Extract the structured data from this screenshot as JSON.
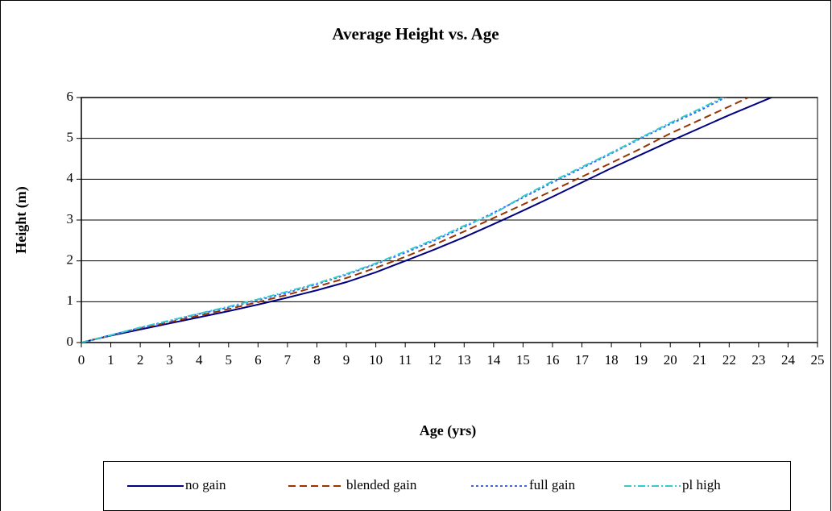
{
  "chart_data": {
    "type": "line",
    "title": "Average Height vs. Age",
    "x_label": "Age (yrs)",
    "y_label": "Height (m)",
    "x": [
      0,
      1,
      2,
      3,
      4,
      5,
      6,
      7,
      8,
      9,
      10,
      11,
      12,
      13,
      14,
      15,
      16,
      17,
      18,
      19,
      20,
      21,
      22,
      23,
      24
    ],
    "series": [
      {
        "name": "no gain",
        "color": "#000080",
        "values": [
          0,
          0.17,
          0.32,
          0.47,
          0.62,
          0.77,
          0.93,
          1.1,
          1.28,
          1.48,
          1.72,
          2.0,
          2.28,
          2.58,
          2.9,
          3.23,
          3.57,
          3.92,
          4.27,
          4.6,
          4.93,
          5.25,
          5.57,
          5.87,
          6.17
        ]
      },
      {
        "name": "blended gain",
        "color": "#993300",
        "values": [
          0,
          0.18,
          0.35,
          0.5,
          0.66,
          0.82,
          0.99,
          1.17,
          1.37,
          1.58,
          1.83,
          2.1,
          2.4,
          2.72,
          3.05,
          3.38,
          3.72,
          4.06,
          4.4,
          4.75,
          5.12,
          5.45,
          5.78,
          6.12,
          null
        ]
      },
      {
        "name": "full gain",
        "color": "#3366ff",
        "values": [
          0,
          0.18,
          0.36,
          0.53,
          0.7,
          0.86,
          1.04,
          1.22,
          1.43,
          1.66,
          1.92,
          2.2,
          2.5,
          2.83,
          3.18,
          3.55,
          3.92,
          4.27,
          4.63,
          5.0,
          5.35,
          5.68,
          6.05,
          null,
          null
        ]
      },
      {
        "name": "pl high",
        "color": "#33cccc",
        "values": [
          0,
          0.18,
          0.37,
          0.54,
          0.71,
          0.88,
          1.06,
          1.25,
          1.45,
          1.68,
          1.94,
          2.23,
          2.53,
          2.86,
          3.15,
          3.58,
          3.95,
          4.3,
          4.65,
          5.02,
          5.38,
          5.72,
          6.08,
          null,
          null
        ]
      }
    ],
    "xlim": [
      0,
      25
    ],
    "xticks": [
      0,
      1,
      2,
      3,
      4,
      5,
      6,
      7,
      8,
      9,
      10,
      11,
      12,
      13,
      14,
      15,
      16,
      17,
      18,
      19,
      20,
      21,
      22,
      23,
      24,
      25
    ],
    "ylim": [
      0,
      6
    ],
    "yticks": [
      0,
      1,
      2,
      3,
      4,
      5,
      6
    ],
    "grid": true,
    "legend": "bottom"
  }
}
